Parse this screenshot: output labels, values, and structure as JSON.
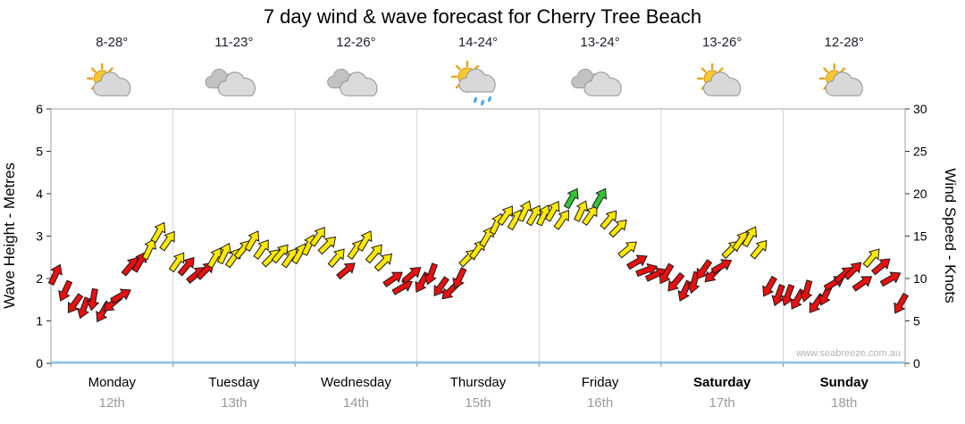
{
  "title": "7 day wind & wave forecast for Cherry Tree Beach",
  "watermark": "www.seabreeze.com.au",
  "chart_data": {
    "type": "scatter",
    "subtype": "wind-direction-arrows",
    "title": "7 day wind & wave forecast for Cherry Tree Beach",
    "ylabel_left": "Wave Height - Metres",
    "ylabel_right": "Wind Speed - Knots",
    "ylim_left": [
      0,
      6
    ],
    "ylim_right": [
      0,
      30
    ],
    "ytick_step_left": 1,
    "ytick_step_right": 5,
    "grid": "day-separators-only",
    "points_per_day": 13,
    "winds_format": [
      "knots",
      "direction_deg_from_north",
      "color_code"
    ],
    "arrow_colors": {
      "r": "#e81010",
      "y": "#ffe800",
      "g": "#33c433"
    },
    "days": [
      {
        "name": "Monday",
        "date": "12th",
        "temps": "8-28°",
        "icon": "partly-cloudy",
        "bold": false,
        "winds": [
          [
            10.5,
            25,
            "r"
          ],
          [
            8.5,
            205,
            "r"
          ],
          [
            7,
            215,
            "r"
          ],
          [
            6.5,
            200,
            "r"
          ],
          [
            7.5,
            190,
            "r"
          ],
          [
            6,
            210,
            "r"
          ],
          [
            7,
            230,
            "r"
          ],
          [
            8,
            60,
            "r"
          ],
          [
            11.5,
            40,
            "r"
          ],
          [
            12,
            30,
            "r"
          ],
          [
            13.5,
            25,
            "y"
          ],
          [
            15.5,
            30,
            "y"
          ],
          [
            14.5,
            35,
            "y"
          ]
        ]
      },
      {
        "name": "Tuesday",
        "date": "13th",
        "temps": "11-23°",
        "icon": "cloudy",
        "bold": false,
        "winds": [
          [
            12,
            35,
            "y"
          ],
          [
            11.5,
            40,
            "r"
          ],
          [
            10.5,
            50,
            "r"
          ],
          [
            11,
            45,
            "r"
          ],
          [
            12.5,
            30,
            "y"
          ],
          [
            13,
            25,
            "y"
          ],
          [
            12.5,
            35,
            "y"
          ],
          [
            13.5,
            40,
            "y"
          ],
          [
            14.5,
            30,
            "y"
          ],
          [
            13.5,
            35,
            "y"
          ],
          [
            12.5,
            45,
            "y"
          ],
          [
            13,
            40,
            "y"
          ],
          [
            12.5,
            35,
            "y"
          ]
        ]
      },
      {
        "name": "Wednesday",
        "date": "14th",
        "temps": "12-26°",
        "icon": "cloudy",
        "bold": false,
        "winds": [
          [
            13,
            30,
            "y"
          ],
          [
            14,
            25,
            "y"
          ],
          [
            15,
            35,
            "y"
          ],
          [
            14,
            45,
            "y"
          ],
          [
            12.5,
            40,
            "y"
          ],
          [
            11,
            50,
            "r"
          ],
          [
            13.5,
            35,
            "y"
          ],
          [
            14.5,
            30,
            "y"
          ],
          [
            13,
            40,
            "y"
          ],
          [
            12,
            45,
            "y"
          ],
          [
            10,
            55,
            "r"
          ],
          [
            9,
            60,
            "r"
          ],
          [
            10.5,
            50,
            "r"
          ]
        ]
      },
      {
        "name": "Thursday",
        "date": "15th",
        "temps": "14-24°",
        "icon": "sun-shower",
        "bold": false,
        "winds": [
          [
            9.5,
            210,
            "r"
          ],
          [
            10.5,
            200,
            "r"
          ],
          [
            9,
            215,
            "r"
          ],
          [
            8.5,
            225,
            "r"
          ],
          [
            10,
            205,
            "r"
          ],
          [
            12.5,
            45,
            "y"
          ],
          [
            13.5,
            35,
            "y"
          ],
          [
            15,
            30,
            "y"
          ],
          [
            16.5,
            25,
            "y"
          ],
          [
            17.5,
            35,
            "y"
          ],
          [
            17,
            30,
            "y"
          ],
          [
            18,
            25,
            "y"
          ],
          [
            17.5,
            30,
            "y"
          ]
        ]
      },
      {
        "name": "Friday",
        "date": "16th",
        "temps": "13-24°",
        "icon": "cloudy",
        "bold": false,
        "winds": [
          [
            17.5,
            25,
            "y"
          ],
          [
            18,
            30,
            "y"
          ],
          [
            17,
            35,
            "y"
          ],
          [
            19.5,
            30,
            "g"
          ],
          [
            18,
            25,
            "y"
          ],
          [
            17.5,
            35,
            "y"
          ],
          [
            19.5,
            30,
            "g"
          ],
          [
            17,
            40,
            "y"
          ],
          [
            16,
            45,
            "y"
          ],
          [
            13.5,
            50,
            "y"
          ],
          [
            12,
            60,
            "r"
          ],
          [
            11,
            70,
            "r"
          ],
          [
            10.5,
            65,
            "r"
          ]
        ]
      },
      {
        "name": "Saturday",
        "date": "17th",
        "temps": "13-26°",
        "icon": "partly-cloudy",
        "bold": true,
        "winds": [
          [
            10.5,
            210,
            "r"
          ],
          [
            9.5,
            220,
            "r"
          ],
          [
            8.5,
            205,
            "r"
          ],
          [
            9.5,
            195,
            "r"
          ],
          [
            11,
            215,
            "r"
          ],
          [
            10.5,
            225,
            "r"
          ],
          [
            11.5,
            60,
            "r"
          ],
          [
            13.5,
            45,
            "y"
          ],
          [
            14.5,
            35,
            "y"
          ],
          [
            15,
            30,
            "y"
          ],
          [
            13.5,
            40,
            "y"
          ],
          [
            9,
            210,
            "r"
          ],
          [
            8,
            200,
            "r"
          ]
        ]
      },
      {
        "name": "Sunday",
        "date": "18th",
        "temps": "12-28°",
        "icon": "partly-cloudy",
        "bold": true,
        "winds": [
          [
            8,
            200,
            "r"
          ],
          [
            7.5,
            210,
            "r"
          ],
          [
            8.5,
            195,
            "r"
          ],
          [
            7,
            215,
            "r"
          ],
          [
            8,
            205,
            "r"
          ],
          [
            9.5,
            60,
            "r"
          ],
          [
            10.5,
            50,
            "r"
          ],
          [
            11,
            45,
            "r"
          ],
          [
            9.5,
            55,
            "r"
          ],
          [
            12.5,
            40,
            "y"
          ],
          [
            11.5,
            50,
            "r"
          ],
          [
            10,
            60,
            "r"
          ],
          [
            7,
            210,
            "r"
          ]
        ]
      }
    ]
  }
}
